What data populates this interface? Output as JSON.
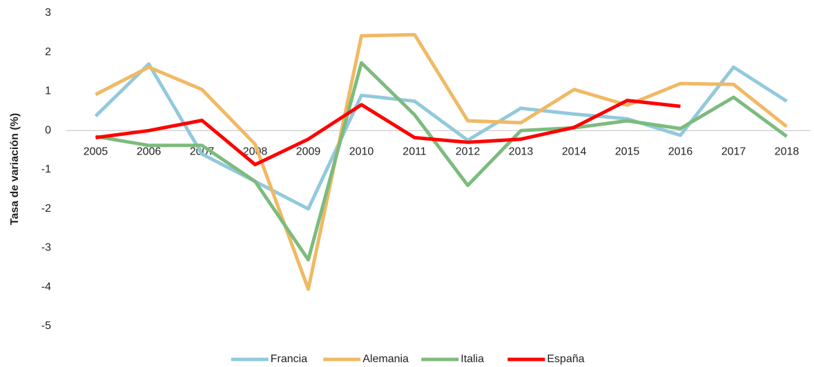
{
  "chart_data": {
    "type": "line",
    "y_label": "Tasa de variación (%)",
    "categories": [
      "2005",
      "2006",
      "2007",
      "2008",
      "2009",
      "2010",
      "2011",
      "2012",
      "2013",
      "2014",
      "2015",
      "2016",
      "2017",
      "2018"
    ],
    "series": [
      {
        "name": "Francia",
        "color": "#92c9dc",
        "values": [
          0.37,
          1.7,
          -0.6,
          -1.3,
          -2.0,
          0.9,
          0.75,
          -0.25,
          0.57,
          0.42,
          0.3,
          -0.12,
          1.62,
          0.75
        ]
      },
      {
        "name": "Alemania",
        "color": "#f0b964",
        "values": [
          0.92,
          1.62,
          1.05,
          -0.35,
          -4.05,
          2.42,
          2.45,
          0.25,
          0.2,
          1.05,
          0.65,
          1.2,
          1.18,
          0.1
        ]
      },
      {
        "name": "Italia",
        "color": "#7dbb7d",
        "values": [
          -0.15,
          -0.38,
          -0.38,
          -1.3,
          -3.3,
          1.73,
          0.4,
          -1.4,
          0.0,
          0.07,
          0.25,
          0.05,
          0.85,
          -0.15
        ]
      },
      {
        "name": "España",
        "color": "#ff0000",
        "values": [
          -0.18,
          0.0,
          0.26,
          -0.87,
          -0.22,
          0.66,
          -0.18,
          -0.3,
          -0.22,
          0.08,
          0.77,
          0.62,
          null,
          null
        ]
      }
    ],
    "ylim": [
      -5,
      3
    ],
    "yticks": [
      -5,
      -4,
      -3,
      -2,
      -1,
      0,
      1,
      2,
      3
    ],
    "grid": false,
    "legend": "bottom"
  }
}
